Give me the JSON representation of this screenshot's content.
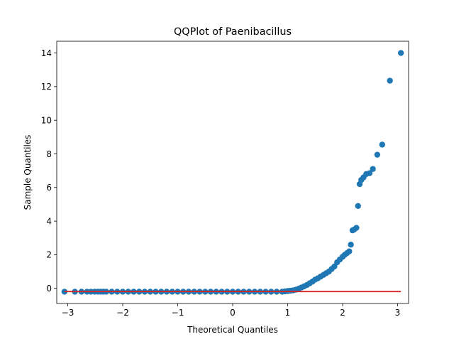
{
  "chart_data": {
    "type": "scatter",
    "title": "QQPlot of Paenibacillus",
    "xlabel": "Theoretical Quantiles",
    "ylabel": "Sample Quantiles",
    "xlim": [
      -3.2,
      3.2
    ],
    "ylim": [
      -0.9,
      14.7
    ],
    "xticks": [
      -3,
      -2,
      -1,
      0,
      1,
      2,
      3
    ],
    "yticks": [
      0,
      2,
      4,
      6,
      8,
      10,
      12,
      14
    ],
    "grid": false,
    "colors": {
      "points": "#1f77b4",
      "reference_line": "#d62728"
    },
    "reference_line": {
      "x": [
        -3.06,
        3.06
      ],
      "y": [
        -0.19,
        -0.19
      ]
    },
    "series": [
      {
        "x": [
          -3.06,
          -2.87,
          -2.75,
          -2.65,
          -2.58,
          -2.51,
          -2.45,
          -2.4,
          -2.35,
          -2.3,
          -2.2,
          -2.1,
          -2.0,
          -1.9,
          -1.8,
          -1.7,
          -1.6,
          -1.5,
          -1.4,
          -1.3,
          -1.2,
          -1.1,
          -1.0,
          -0.9,
          -0.8,
          -0.7,
          -0.6,
          -0.5,
          -0.4,
          -0.3,
          -0.2,
          -0.1,
          0.0,
          0.1,
          0.2,
          0.3,
          0.4,
          0.5,
          0.6,
          0.7,
          0.8,
          0.9,
          0.95,
          1.0,
          1.05,
          1.1,
          1.15,
          1.2,
          1.25,
          1.3,
          1.35,
          1.4,
          1.45,
          1.5,
          1.55,
          1.6,
          1.65,
          1.7,
          1.75,
          1.8,
          1.85,
          1.9,
          1.95,
          2.0,
          2.04,
          2.08,
          2.12,
          2.15,
          2.18,
          2.21,
          2.25,
          2.28,
          2.31,
          2.34,
          2.38,
          2.43,
          2.49,
          2.55,
          2.63,
          2.72,
          2.86,
          3.06
        ],
        "y": [
          -0.2,
          -0.2,
          -0.2,
          -0.2,
          -0.2,
          -0.2,
          -0.2,
          -0.2,
          -0.2,
          -0.2,
          -0.2,
          -0.2,
          -0.2,
          -0.2,
          -0.2,
          -0.2,
          -0.2,
          -0.2,
          -0.2,
          -0.2,
          -0.2,
          -0.2,
          -0.2,
          -0.2,
          -0.2,
          -0.2,
          -0.2,
          -0.2,
          -0.2,
          -0.2,
          -0.2,
          -0.2,
          -0.2,
          -0.2,
          -0.2,
          -0.2,
          -0.2,
          -0.2,
          -0.2,
          -0.2,
          -0.2,
          -0.2,
          -0.18,
          -0.16,
          -0.14,
          -0.12,
          -0.08,
          -0.02,
          0.05,
          0.12,
          0.2,
          0.3,
          0.4,
          0.52,
          0.6,
          0.7,
          0.8,
          0.9,
          1.0,
          1.15,
          1.3,
          1.55,
          1.72,
          1.88,
          2.0,
          2.1,
          2.2,
          2.6,
          3.45,
          3.5,
          3.6,
          4.9,
          6.2,
          6.45,
          6.6,
          6.8,
          6.85,
          7.1,
          7.95,
          8.55,
          12.35,
          14.0
        ]
      }
    ]
  }
}
